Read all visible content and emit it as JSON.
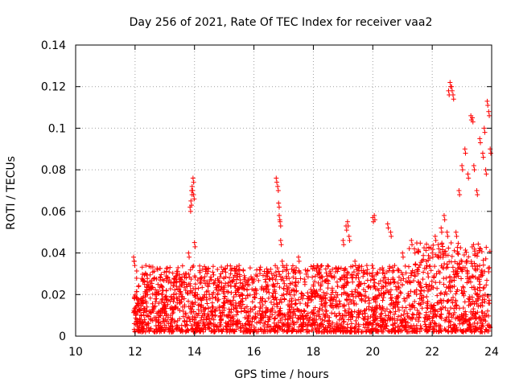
{
  "chart_data": {
    "type": "scatter",
    "title": "Day 256 of 2021, Rate Of TEC Index for receiver vaa2",
    "xlabel": "GPS time / hours",
    "ylabel": "ROTI / TECUs",
    "xlim": [
      10,
      24
    ],
    "ylim": [
      0,
      0.14
    ],
    "x_ticks": [
      "10",
      "12",
      "14",
      "16",
      "18",
      "20",
      "22",
      "24"
    ],
    "y_ticks": [
      "0",
      "0.02",
      "0.04",
      "0.06",
      "0.08",
      "0.1",
      "0.12",
      "0.14"
    ],
    "grid": true,
    "marker": "plus",
    "color": "#ff0000",
    "series": [
      {
        "x": [
          11.95,
          11.97,
          12.0,
          12.05,
          12.1,
          12.2,
          12.3,
          12.4,
          12.5,
          12.6,
          12.7,
          12.8,
          12.9,
          13.0,
          13.1,
          13.2,
          13.3,
          13.4,
          13.5,
          13.6,
          13.7,
          13.8,
          13.85,
          13.88,
          13.9,
          13.92,
          13.95,
          13.97,
          14.0,
          14.1,
          14.2,
          14.3,
          14.4,
          14.5,
          14.6,
          14.8,
          15.0,
          15.2,
          15.4,
          15.5,
          15.6,
          15.7,
          15.8,
          16.0,
          16.2,
          16.4,
          16.6,
          16.75,
          16.8,
          16.83,
          16.85,
          16.88,
          16.9,
          16.95,
          17.0,
          17.1,
          17.2,
          17.4,
          17.5,
          17.6,
          17.8,
          18.0,
          18.2,
          18.4,
          18.6,
          18.8,
          19.0,
          19.1,
          19.15,
          19.2,
          19.3,
          19.4,
          19.5,
          19.6,
          19.8,
          20.0,
          20.05,
          20.2,
          20.4,
          20.5,
          20.6,
          20.8,
          21.0,
          21.2,
          21.3,
          21.4,
          21.5,
          21.6,
          21.8,
          22.0,
          22.1,
          22.2,
          22.3,
          22.4,
          22.5,
          22.55,
          22.6,
          22.65,
          22.7,
          22.8,
          22.9,
          23.0,
          23.1,
          23.2,
          23.3,
          23.35,
          23.4,
          23.5,
          23.6,
          23.7,
          23.75,
          23.8,
          23.85,
          23.9,
          23.95
        ],
        "y": [
          0.038,
          0.036,
          0.012,
          0.008,
          0.015,
          0.018,
          0.01,
          0.022,
          0.026,
          0.014,
          0.02,
          0.012,
          0.024,
          0.016,
          0.028,
          0.01,
          0.02,
          0.018,
          0.026,
          0.014,
          0.03,
          0.04,
          0.062,
          0.065,
          0.07,
          0.072,
          0.076,
          0.068,
          0.045,
          0.02,
          0.028,
          0.012,
          0.032,
          0.02,
          0.016,
          0.024,
          0.018,
          0.026,
          0.014,
          0.034,
          0.02,
          0.028,
          0.012,
          0.022,
          0.016,
          0.026,
          0.03,
          0.076,
          0.072,
          0.064,
          0.058,
          0.055,
          0.046,
          0.036,
          0.02,
          0.034,
          0.014,
          0.026,
          0.038,
          0.012,
          0.018,
          0.024,
          0.03,
          0.014,
          0.02,
          0.026,
          0.046,
          0.053,
          0.055,
          0.048,
          0.028,
          0.036,
          0.03,
          0.02,
          0.034,
          0.057,
          0.058,
          0.022,
          0.03,
          0.054,
          0.05,
          0.018,
          0.04,
          0.028,
          0.046,
          0.042,
          0.032,
          0.024,
          0.036,
          0.04,
          0.048,
          0.044,
          0.052,
          0.058,
          0.05,
          0.118,
          0.122,
          0.12,
          0.116,
          0.05,
          0.07,
          0.082,
          0.09,
          0.078,
          0.106,
          0.105,
          0.082,
          0.07,
          0.095,
          0.088,
          0.1,
          0.08,
          0.113,
          0.108,
          0.09
        ]
      }
    ],
    "dense_band": {
      "x_range": [
        11.95,
        23.95
      ],
      "y_range": [
        0.002,
        0.034
      ],
      "note_hidden": true
    }
  }
}
